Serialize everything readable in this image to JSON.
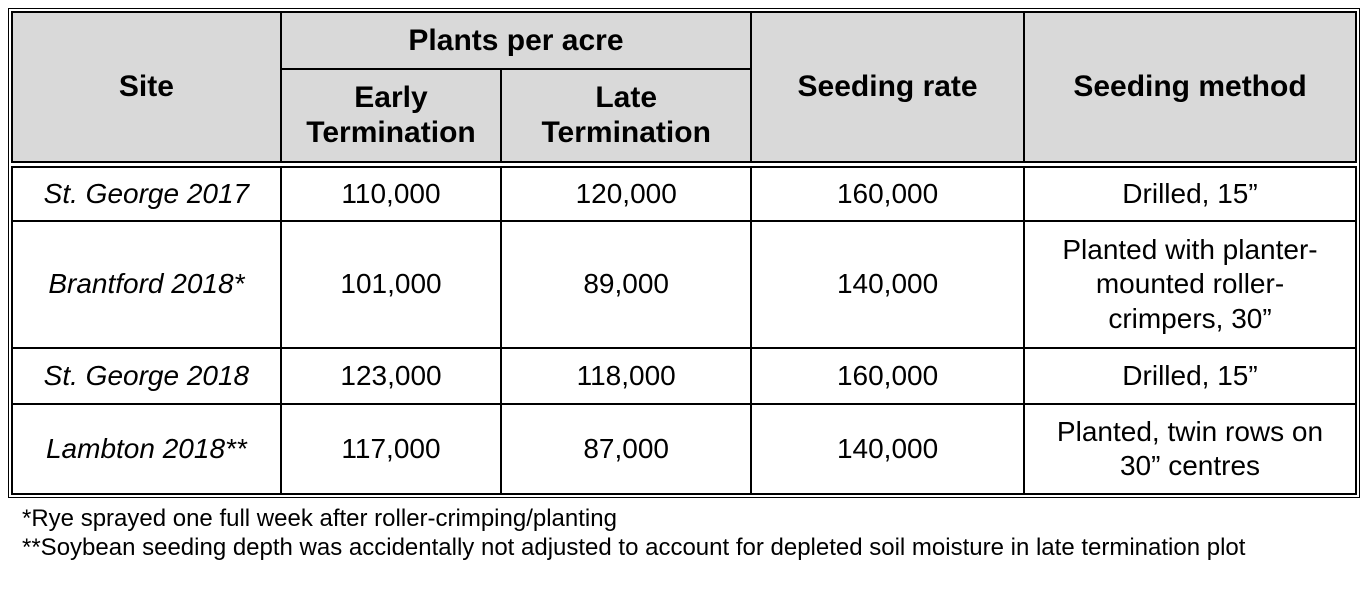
{
  "table": {
    "header": {
      "site": "Site",
      "plants_per_acre": "Plants per acre",
      "early_termination": "Early\nTermination",
      "late_termination": "Late\nTermination",
      "seeding_rate": "Seeding rate",
      "seeding_method": "Seeding method"
    },
    "rows": [
      {
        "site": "St. George 2017",
        "early": "110,000",
        "late": "120,000",
        "rate": "160,000",
        "method": "Drilled, 15”"
      },
      {
        "site": "Brantford 2018*",
        "early": "101,000",
        "late": "89,000",
        "rate": "140,000",
        "method": "Planted with planter-\nmounted roller-\ncrimpers, 30”"
      },
      {
        "site": "St. George 2018",
        "early": "123,000",
        "late": "118,000",
        "rate": "160,000",
        "method": "Drilled, 15”"
      },
      {
        "site": "Lambton 2018**",
        "early": "117,000",
        "late": "87,000",
        "rate": "140,000",
        "method": "Planted, twin rows on\n30” centres"
      }
    ],
    "footnotes": [
      "*Rye sprayed one full week after roller-crimping/planting",
      "**Soybean seeding depth was accidentally not adjusted to account for depleted soil moisture in late termination plot"
    ]
  },
  "colors": {
    "header_bg": "#d9d9d9",
    "border": "#000000",
    "body_bg": "#ffffff"
  }
}
